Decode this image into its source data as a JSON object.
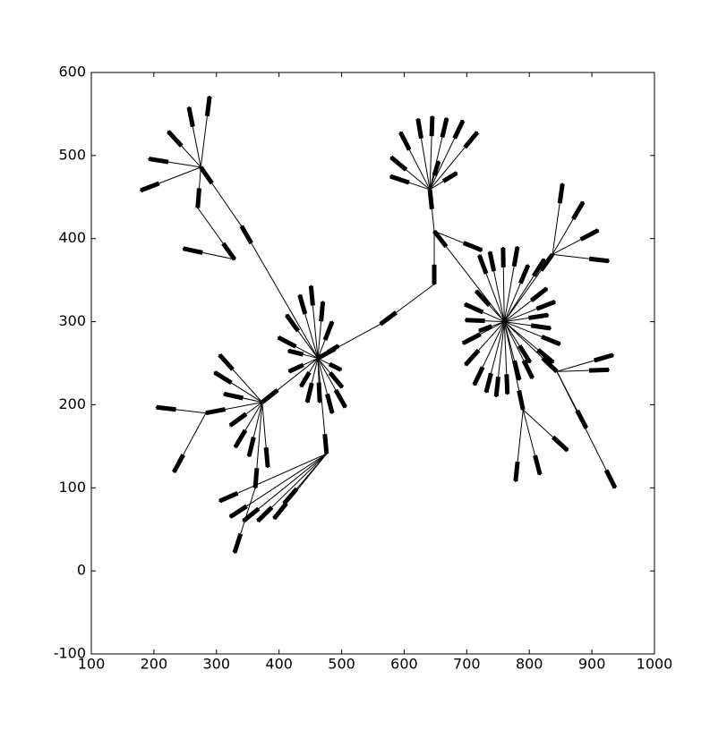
{
  "chart_data": {
    "type": "network",
    "xlim": [
      100,
      1000
    ],
    "ylim": [
      -100,
      600
    ],
    "xticks": [
      100,
      200,
      300,
      400,
      500,
      600,
      700,
      800,
      900,
      1000
    ],
    "yticks": [
      -100,
      0,
      100,
      200,
      300,
      400,
      500,
      600
    ],
    "color": "#000000",
    "x": [
      275,
      462,
      373,
      476,
      641,
      760,
      837,
      648,
      648,
      562,
      844,
      790,
      340,
      329,
      270,
      247,
      283,
      362,
      289,
      256,
      223,
      192,
      179,
      399,
      415,
      416,
      435,
      445,
      465,
      485,
      506,
      501,
      499,
      495,
      433,
      451,
      470,
      485,
      412,
      305,
      297,
      312,
      322,
      330,
      352,
      382,
      204,
      232,
      329,
      305,
      322,
      343,
      366,
      392,
      408,
      578,
      579,
      594,
      622,
      645,
      668,
      694,
      717,
      684,
      655,
      724,
      697,
      715,
      720,
      737,
      758,
      781,
      798,
      824,
      828,
      841,
      830,
      834,
      849,
      838,
      805,
      801,
      784,
      765,
      747,
      731,
      712,
      698,
      694,
      698,
      720,
      853,
      886,
      910,
      927,
      934,
      927,
      937,
      891,
      778,
      817,
      861
    ],
    "y": [
      486,
      256,
      203,
      141,
      459,
      300,
      381,
      409,
      345,
      297,
      240,
      194,
      415,
      375,
      437,
      388,
      190,
      100,
      571,
      558,
      529,
      496,
      458,
      281,
      265,
      240,
      222,
      203,
      203,
      190,
      197,
      221,
      242,
      271,
      332,
      343,
      324,
      300,
      308,
      260,
      239,
      213,
      175,
      149,
      138,
      125,
      197,
      119,
      22,
      84,
      65,
      60,
      60,
      63,
      81,
      475,
      498,
      528,
      544,
      547,
      545,
      542,
      528,
      479,
      493,
      386,
      321,
      337,
      380,
      384,
      389,
      390,
      368,
      375,
      340,
      324,
      308,
      292,
      273,
      251,
      232,
      251,
      230,
      213,
      210,
      215,
      224,
      248,
      274,
      302,
      289,
      466,
      444,
      410,
      373,
      260,
      242,
      100,
      172,
      108,
      116,
      145
    ],
    "parent": [
      12,
      9,
      1,
      1,
      7,
      null,
      5,
      5,
      7,
      8,
      5,
      5,
      1,
      14,
      0,
      13,
      2,
      2,
      0,
      0,
      0,
      0,
      0,
      1,
      1,
      1,
      1,
      1,
      1,
      1,
      1,
      1,
      1,
      1,
      1,
      1,
      1,
      1,
      1,
      2,
      2,
      2,
      2,
      2,
      2,
      2,
      16,
      16,
      17,
      3,
      3,
      3,
      3,
      3,
      3,
      4,
      4,
      4,
      4,
      4,
      4,
      4,
      4,
      4,
      4,
      7,
      5,
      5,
      5,
      5,
      5,
      5,
      5,
      5,
      5,
      5,
      5,
      5,
      5,
      5,
      5,
      5,
      5,
      5,
      5,
      5,
      5,
      5,
      5,
      5,
      5,
      6,
      6,
      6,
      6,
      10,
      10,
      10,
      10,
      11,
      11,
      11
    ]
  }
}
